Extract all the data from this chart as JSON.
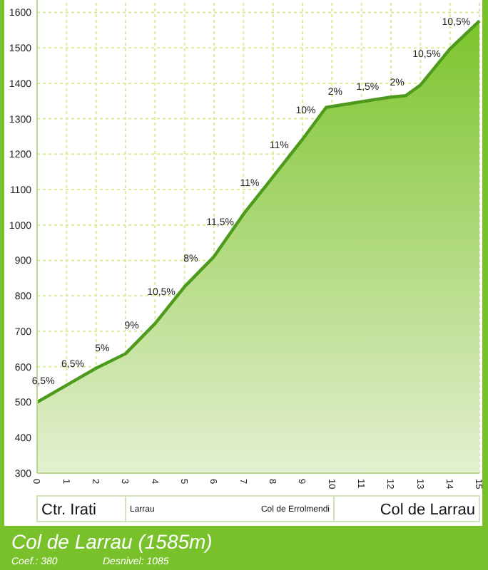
{
  "chart_data": {
    "type": "area",
    "title": "Col de Larrau (1585m)",
    "x": [
      0,
      1,
      2,
      3,
      4,
      5,
      6,
      7,
      8,
      9,
      9.8,
      11,
      12,
      12.5,
      13,
      14,
      15
    ],
    "series": [
      {
        "color": "#4e9a1c",
        "values": [
          500,
          548,
          596,
          637,
          722,
          826,
          911,
          1031,
          1136,
          1242,
          1332,
          1348,
          1361,
          1365,
          1395,
          1497,
          1576
        ]
      }
    ],
    "xlim": [
      0,
      15
    ],
    "xticks": [
      0,
      1,
      2,
      3,
      4,
      5,
      6,
      7,
      8,
      9,
      10,
      11,
      12,
      13,
      14,
      15
    ],
    "ylim": [
      300,
      1635
    ],
    "yticks": [
      300,
      400,
      500,
      600,
      700,
      800,
      900,
      1000,
      1100,
      1200,
      1300,
      1400,
      1500,
      1600
    ],
    "grid": true,
    "annotations": [
      {
        "text": "6,5%",
        "x": 0.5,
        "y": 524
      },
      {
        "text": "6,5%",
        "x": 1.5,
        "y": 572
      },
      {
        "text": "5%",
        "x": 2.5,
        "y": 616
      },
      {
        "text": "9%",
        "x": 3.5,
        "y": 680
      },
      {
        "text": "10,5%",
        "x": 4.5,
        "y": 774
      },
      {
        "text": "8%",
        "x": 5.5,
        "y": 868
      },
      {
        "text": "11,5%",
        "x": 6.5,
        "y": 971
      },
      {
        "text": "11%",
        "x": 7.5,
        "y": 1083
      },
      {
        "text": "11%",
        "x": 8.5,
        "y": 1189
      },
      {
        "text": "10%",
        "x": 9.4,
        "y": 1287
      },
      {
        "text": "2%",
        "x": 10.4,
        "y": 1340
      },
      {
        "text": "1,5%",
        "x": 11.5,
        "y": 1354
      },
      {
        "text": "2%",
        "x": 12.5,
        "y": 1365
      },
      {
        "text": "10,5%",
        "x": 13.5,
        "y": 1446
      },
      {
        "text": "10,5%",
        "x": 14.5,
        "y": 1536
      },
      "Ctr. Irati",
      "Larrau",
      "Col de Errolmendi",
      "Col de Larrau",
      "Coef.: 380",
      "Desnivel: 1085"
    ]
  }
}
